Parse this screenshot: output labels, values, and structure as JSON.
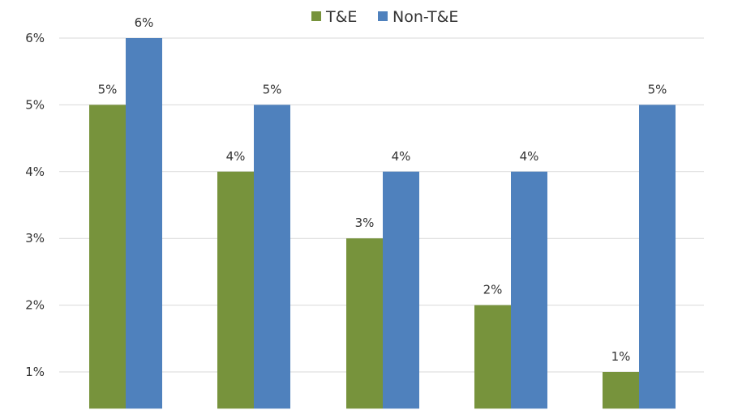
{
  "chart_data": {
    "type": "bar",
    "categories": [
      "",
      "",
      "",
      "",
      ""
    ],
    "series": [
      {
        "name": "T&E",
        "color": "#77933c",
        "values": [
          5,
          4,
          3,
          2,
          1
        ],
        "labels": [
          "5%",
          "4%",
          "3%",
          "2%",
          "1%"
        ]
      },
      {
        "name": "Non-T&E",
        "color": "#4f81bd",
        "values": [
          6,
          5,
          4,
          4,
          5
        ],
        "labels": [
          "6%",
          "5%",
          "4%",
          "4%",
          "5%"
        ]
      }
    ],
    "yticks": [
      1,
      2,
      3,
      4,
      5,
      6
    ],
    "ytick_labels": [
      "1%",
      "2%",
      "3%",
      "4%",
      "5%",
      "6%"
    ],
    "ylim": [
      0.45,
      6
    ],
    "grid": true,
    "legend_position": "top-center"
  }
}
